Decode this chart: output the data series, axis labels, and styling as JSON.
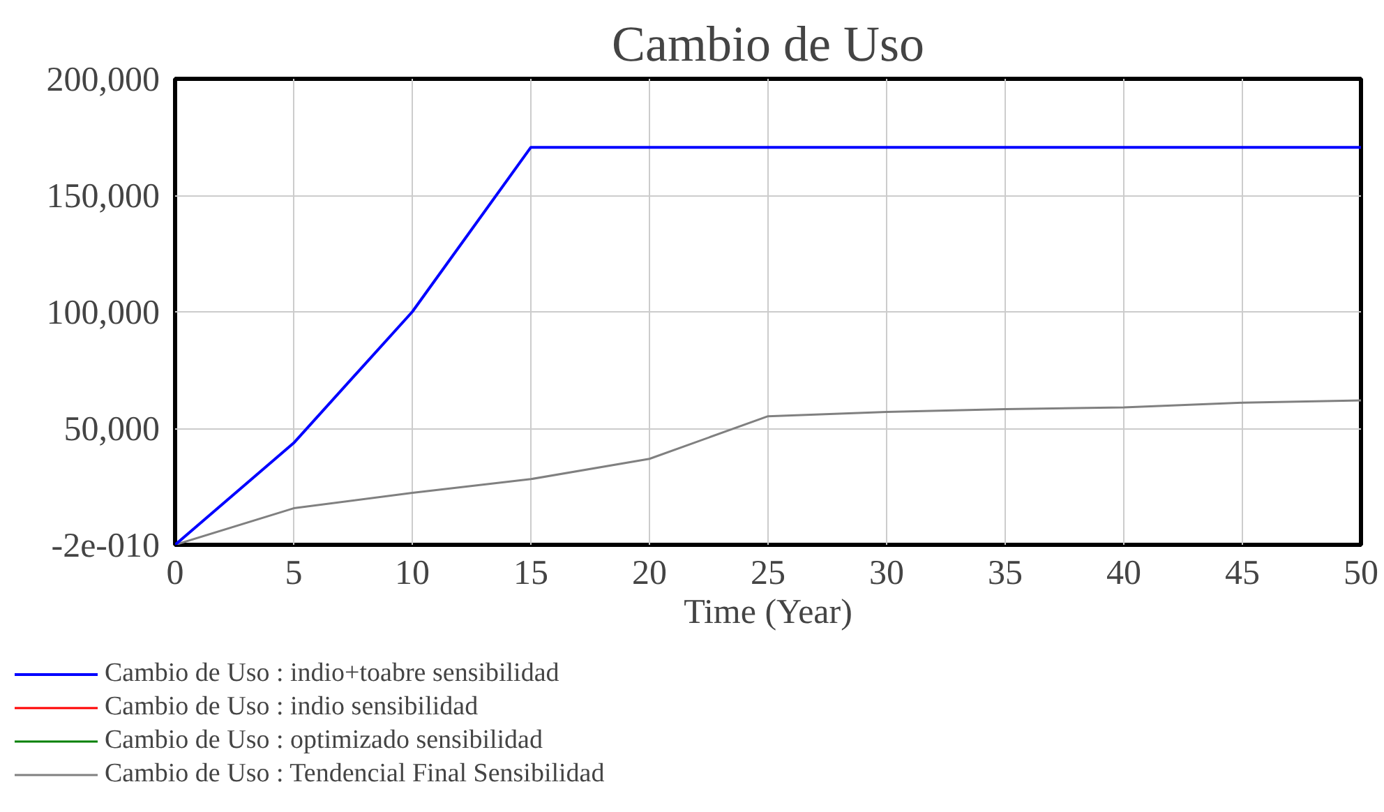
{
  "chart_data": {
    "type": "line",
    "title": "Cambio de Uso",
    "xlabel": "Time (Year)",
    "x": [
      0,
      5,
      10,
      15,
      20,
      25,
      30,
      35,
      40,
      45,
      50
    ],
    "xlim": [
      0,
      50
    ],
    "xticks": [
      0,
      5,
      10,
      15,
      20,
      25,
      30,
      35,
      40,
      45,
      50
    ],
    "ylim": [
      -2e-10,
      200000
    ],
    "yticks": [
      {
        "value": -2e-10,
        "label": "-2e-010"
      },
      {
        "value": 50000,
        "label": "50,000"
      },
      {
        "value": 100000,
        "label": "100,000"
      },
      {
        "value": 150000,
        "label": "150,000"
      },
      {
        "value": 200000,
        "label": "200,000"
      }
    ],
    "grid": true,
    "legend": "bottom",
    "line_style": "solid",
    "series": [
      {
        "name": "Cambio de Uso : indio+toabre sensibilidad",
        "color": "#0000ff",
        "values": [
          0,
          43700,
          100000,
          170600,
          170600,
          170600,
          170600,
          170600,
          170600,
          170600,
          170600
        ]
      },
      {
        "name": "Cambio de Uso : indio sensibilidad",
        "color": "#ff0000",
        "values": [
          null,
          null,
          null,
          null,
          null,
          null,
          null,
          null,
          null,
          null,
          null
        ]
      },
      {
        "name": "Cambio de Uso : optimizado sensibilidad",
        "color": "#008000",
        "values": [
          null,
          null,
          null,
          null,
          null,
          null,
          null,
          null,
          null,
          null,
          null
        ]
      },
      {
        "name": "Cambio de Uso : Tendencial Final Sensibilidad",
        "color": "#808080",
        "values": [
          0,
          15700,
          22300,
          28200,
          36900,
          55200,
          57000,
          58200,
          59000,
          61000,
          62000
        ]
      }
    ]
  }
}
